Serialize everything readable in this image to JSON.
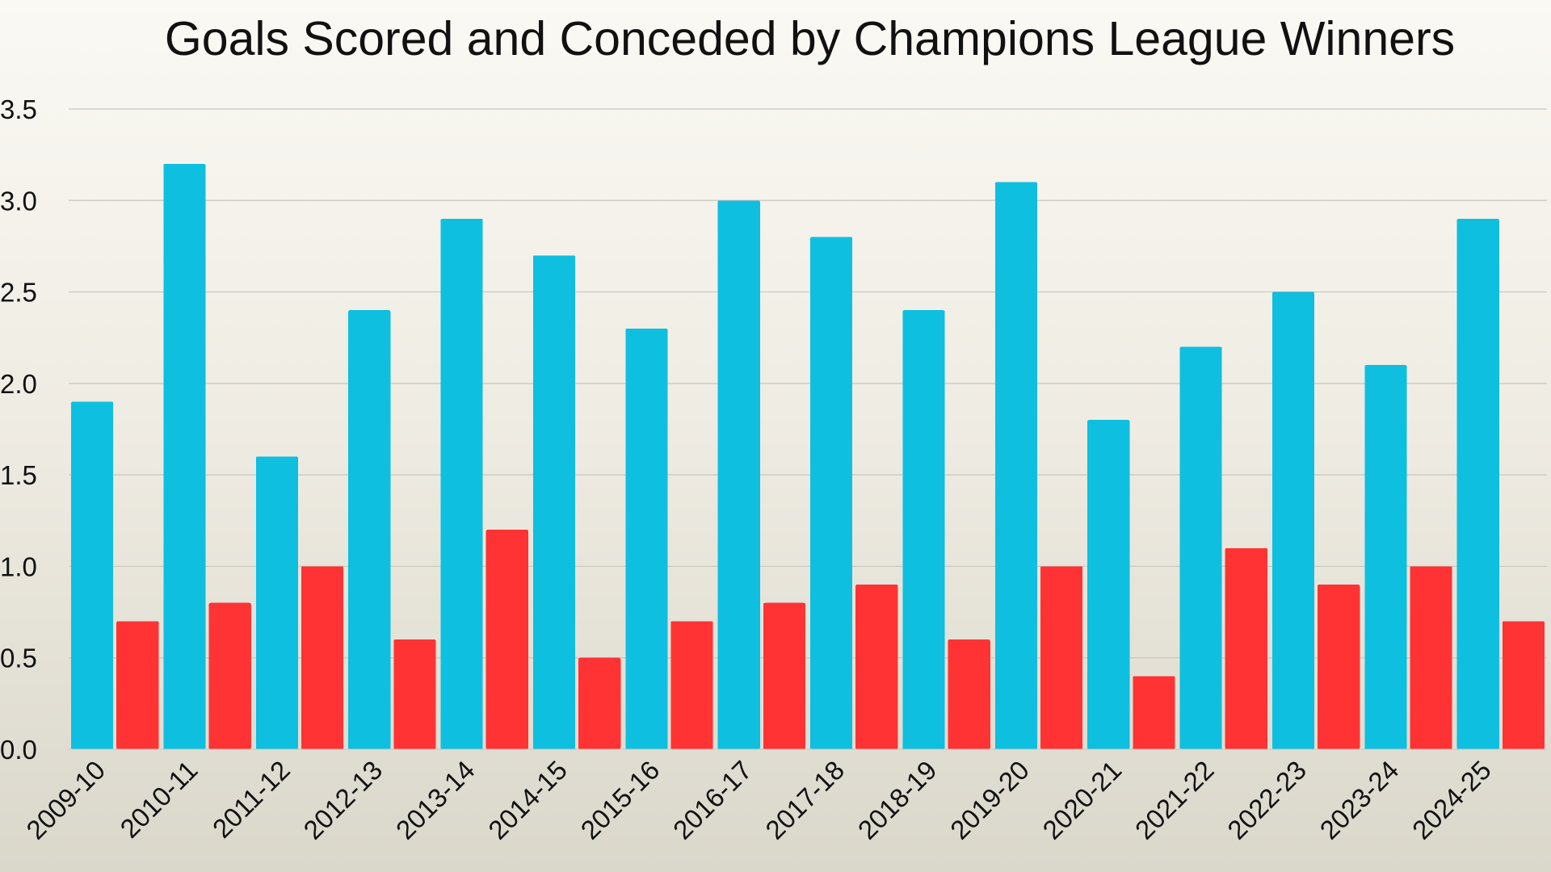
{
  "chart_data": {
    "type": "bar",
    "title": "Goals Scored and Conceded by Champions League Winners",
    "xlabel": "",
    "ylabel": "",
    "categories": [
      "2009-10",
      "2010-11",
      "2011-12",
      "2012-13",
      "2013-14",
      "2014-15",
      "2015-16",
      "2016-17",
      "2017-18",
      "2018-19",
      "2019-20",
      "2020-21",
      "2021-22",
      "2022-23",
      "2023-24",
      "2024-25"
    ],
    "series": [
      {
        "color": "#0ebfe0",
        "values": [
          1.9,
          3.2,
          1.6,
          2.4,
          2.9,
          2.7,
          2.3,
          3.0,
          2.8,
          2.4,
          3.1,
          1.8,
          2.2,
          2.5,
          2.1,
          2.9
        ]
      },
      {
        "color": "#ff3334",
        "values": [
          0.7,
          0.8,
          1.0,
          0.6,
          1.2,
          0.5,
          0.7,
          0.8,
          0.9,
          0.6,
          1.0,
          0.4,
          1.1,
          0.9,
          1.0,
          0.7
        ]
      }
    ],
    "ylim": [
      0,
      3.5
    ],
    "yticks": [
      "0.0",
      "0.5",
      "1.0",
      "1.5",
      "2.0",
      "2.5",
      "3.0",
      "3.5"
    ],
    "grid": true,
    "legend": "none",
    "gridline_color": "#c9c6bc"
  }
}
